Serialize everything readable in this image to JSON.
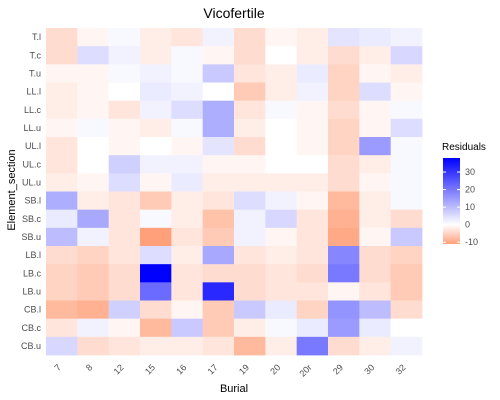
{
  "chart_data": {
    "type": "heatmap",
    "title": "Vicofertile",
    "xlabel": "Burial",
    "ylabel": "Element_section",
    "x": [
      "7",
      "8",
      "12",
      "15",
      "16",
      "17",
      "19",
      "20",
      "20r",
      "29",
      "30",
      "32"
    ],
    "y": [
      "T.l",
      "T.c",
      "T.u",
      "LL.l",
      "LL.c",
      "LL.u",
      "UL.l",
      "UL.c",
      "UL.u",
      "SB.l",
      "SB.c",
      "SB.u",
      "LB.l",
      "LB.c",
      "LB.u",
      "CB.l",
      "CB.c",
      "CB.u"
    ],
    "values": [
      [
        -4,
        -1,
        1,
        -2,
        -3,
        2,
        -4,
        -1,
        -2,
        4,
        3,
        2
      ],
      [
        -4,
        5,
        2,
        -2,
        1,
        -1,
        -4,
        0,
        -2,
        -4,
        -2,
        6
      ],
      [
        -1,
        -1,
        1,
        2,
        1,
        8,
        -3,
        -2,
        3,
        -5,
        -1,
        -2
      ],
      [
        -2,
        -1,
        0,
        3,
        2,
        0,
        -6,
        -2,
        2,
        -5,
        5,
        -1
      ],
      [
        -2,
        -1,
        -3,
        2,
        5,
        12,
        -3,
        1,
        -1,
        -4,
        -1,
        1
      ],
      [
        -1,
        1,
        -1,
        -2,
        1,
        12,
        -2,
        0,
        -1,
        -5,
        -1,
        5
      ],
      [
        -3,
        0,
        -1,
        0,
        -1,
        4,
        -4,
        0,
        -1,
        -5,
        15,
        1
      ],
      [
        -3,
        0,
        7,
        2,
        2,
        -1,
        -1,
        0,
        0,
        -4,
        -2,
        1
      ],
      [
        -2,
        -1,
        5,
        -1,
        3,
        -2,
        -2,
        -2,
        -2,
        -4,
        -1,
        1
      ],
      [
        12,
        -2,
        -3,
        -6,
        -2,
        -3,
        5,
        2,
        -1,
        -8,
        -2,
        1
      ],
      [
        3,
        13,
        -3,
        1,
        -2,
        -7,
        2,
        6,
        -3,
        -9,
        -2,
        -4
      ],
      [
        10,
        2,
        -3,
        -11,
        -3,
        -6,
        2,
        -1,
        -3,
        -10,
        -1,
        8
      ],
      [
        -4,
        -5,
        -3,
        5,
        -2,
        13,
        -3,
        -2,
        -3,
        18,
        -4,
        -5
      ],
      [
        -5,
        -6,
        -4,
        38,
        -3,
        -4,
        -4,
        -3,
        -4,
        20,
        -4,
        -6
      ],
      [
        -5,
        -6,
        -4,
        22,
        -3,
        32,
        -4,
        -3,
        -3,
        -1,
        -3,
        -6
      ],
      [
        -8,
        -9,
        7,
        -4,
        -1,
        -6,
        8,
        3,
        -5,
        16,
        10,
        -4
      ],
      [
        -3,
        2,
        -1,
        -8,
        8,
        -6,
        -2,
        1,
        3,
        15,
        3,
        0
      ],
      [
        6,
        -4,
        -3,
        -2,
        -2,
        -3,
        -8,
        -2,
        20,
        -4,
        -2,
        2
      ]
    ],
    "legend": {
      "title": "Residuals",
      "ticks": [
        30,
        20,
        10,
        0,
        -10
      ],
      "range": [
        -11,
        38
      ],
      "placement": "right"
    },
    "colors": {
      "high": "#0000ff",
      "mid": "#ffffff",
      "low": "#ffa07a",
      "panel_background": "#ffffff",
      "tick_text": "#4d4d4d"
    },
    "grid": false
  }
}
